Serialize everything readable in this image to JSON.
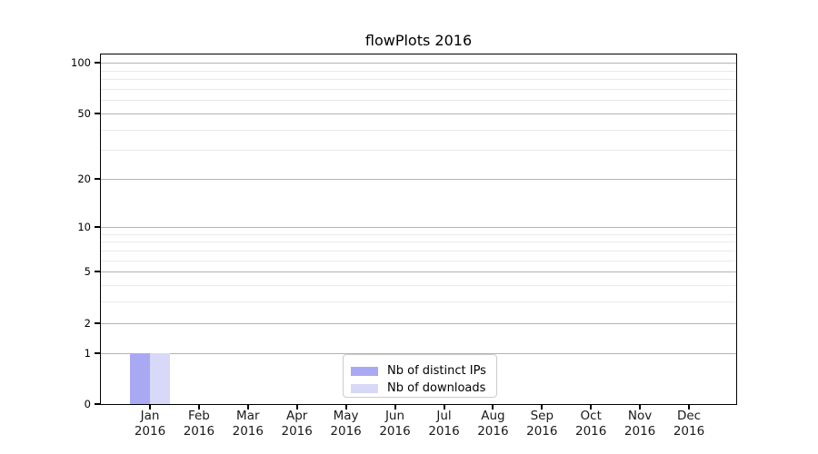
{
  "figure": {
    "title": "flowPlots 2016"
  },
  "chart_data": {
    "type": "bar",
    "title": "flowPlots 2016",
    "categories": [
      "Jan",
      "Feb",
      "Mar",
      "Apr",
      "May",
      "Jun",
      "Jul",
      "Aug",
      "Sep",
      "Oct",
      "Nov",
      "Dec"
    ],
    "category_sublabel": "2016",
    "series": [
      {
        "name": "Nb of distinct IPs",
        "color": "#a9a9f3",
        "values": [
          1,
          0,
          0,
          0,
          0,
          0,
          0,
          0,
          0,
          0,
          0,
          0
        ]
      },
      {
        "name": "Nb of downloads",
        "color": "#d8d8f8",
        "values": [
          1,
          0,
          0,
          0,
          0,
          0,
          0,
          0,
          0,
          0,
          0,
          0
        ]
      }
    ],
    "y_axis": {
      "scale": "log1p",
      "ticks": [
        0,
        1,
        2,
        5,
        10,
        20,
        50,
        100
      ],
      "minor_ticks": [
        3,
        4,
        6,
        7,
        8,
        9,
        30,
        40,
        60,
        70,
        80,
        90
      ],
      "top_value": 112
    },
    "x_axis": {
      "tick_count": 12
    },
    "legend": {
      "position": "bottom-center",
      "entries": [
        "Nb of distinct IPs",
        "Nb of downloads"
      ]
    },
    "grid": {
      "major_color": "#b3b3b3",
      "minor_color": "#eaeaea"
    },
    "colors": {
      "axis": "#000000",
      "background": "#ffffff"
    }
  }
}
